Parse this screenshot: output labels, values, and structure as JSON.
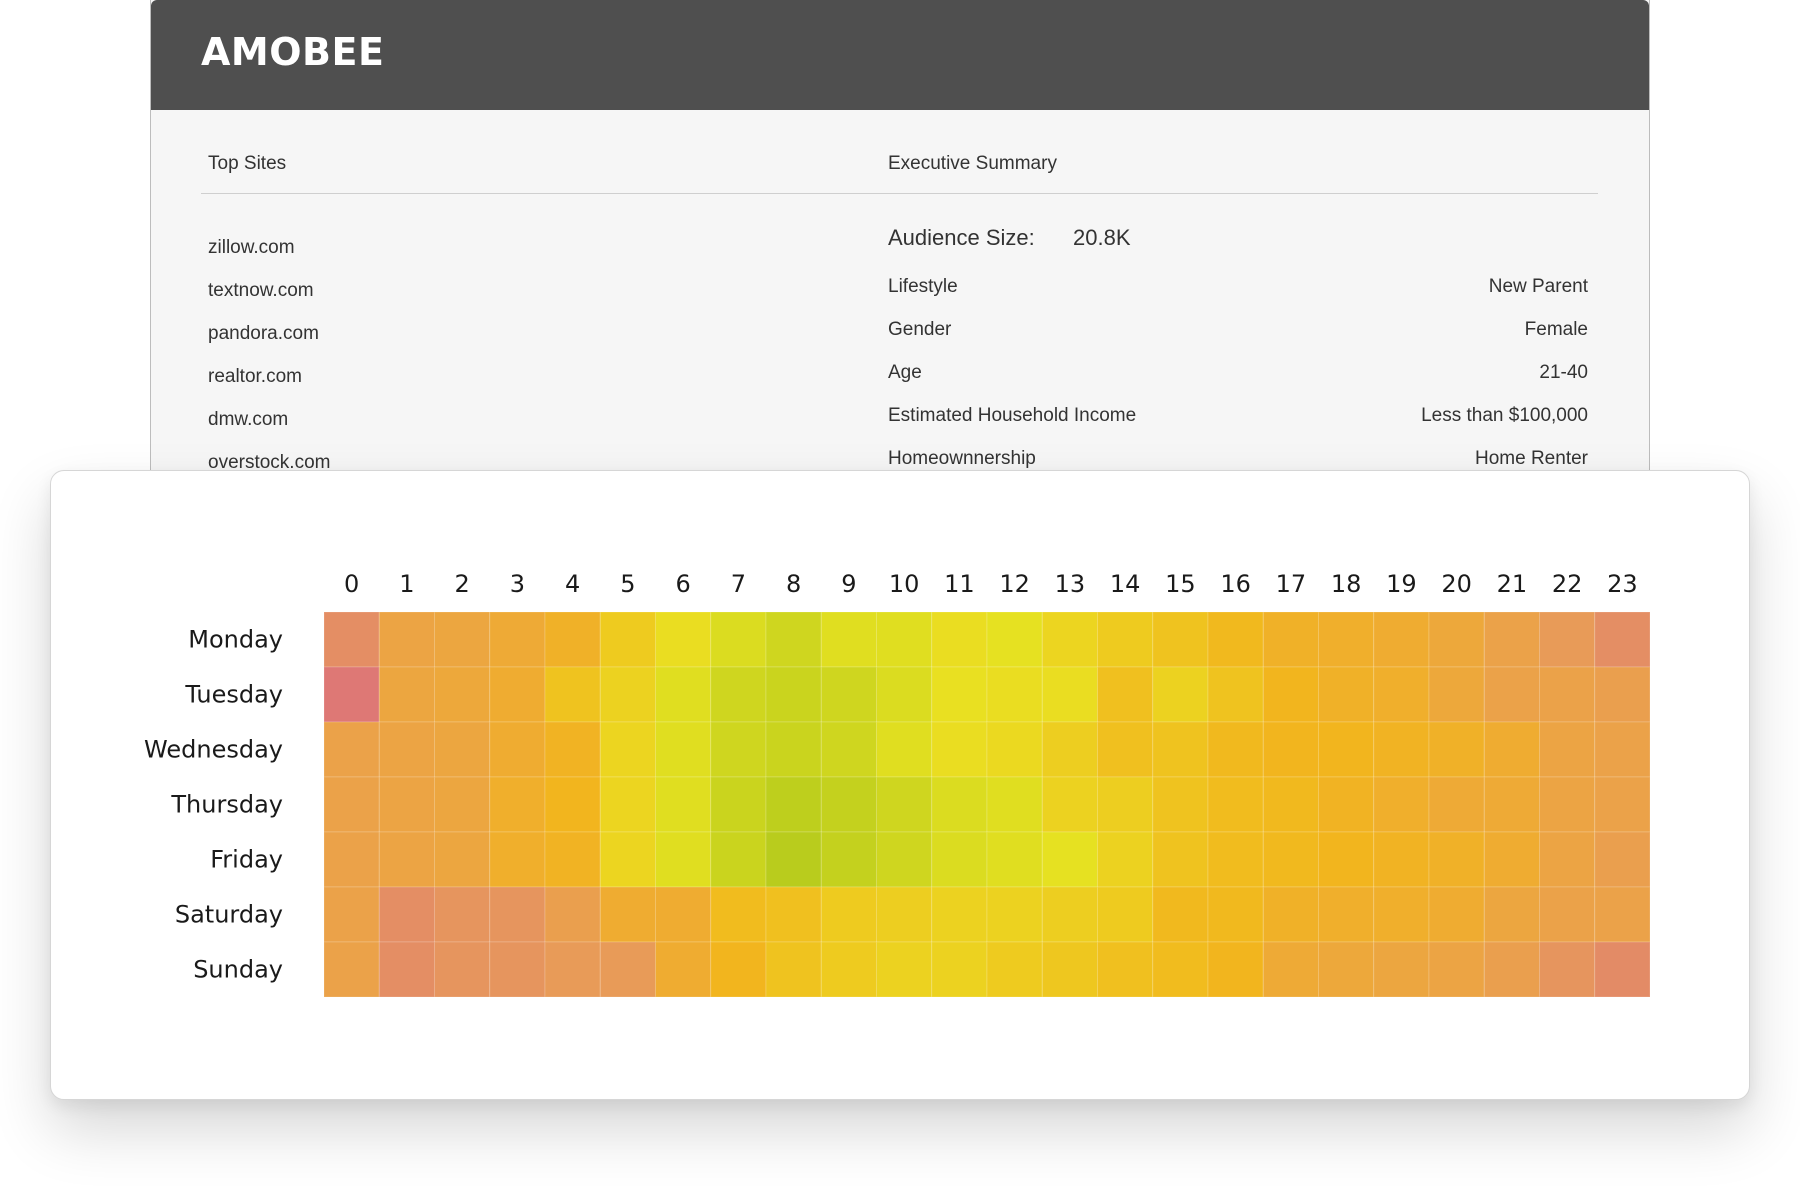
{
  "header": {
    "brand": "AMOBEE"
  },
  "top_sites": {
    "heading": "Top Sites",
    "items": [
      "zillow.com",
      "textnow.com",
      "pandora.com",
      "realtor.com",
      "dmw.com",
      "overstock.com"
    ]
  },
  "executive_summary": {
    "heading": "Executive Summary",
    "audience_size_label": "Audience Size:",
    "audience_size_value": "20.8K",
    "rows": [
      {
        "label": "Lifestyle",
        "value": "New Parent"
      },
      {
        "label": "Gender",
        "value": "Female"
      },
      {
        "label": "Age",
        "value": "21-40"
      },
      {
        "label": "Estimated Household Income",
        "value": "Less than $100,000"
      },
      {
        "label": "Homeownnership",
        "value": "Home Renter"
      }
    ]
  },
  "chart_data": {
    "type": "heatmap",
    "x": [
      "0",
      "1",
      "2",
      "3",
      "4",
      "5",
      "6",
      "7",
      "8",
      "9",
      "10",
      "11",
      "12",
      "13",
      "14",
      "15",
      "16",
      "17",
      "18",
      "19",
      "20",
      "21",
      "22",
      "23"
    ],
    "y": [
      "Monday",
      "Tuesday",
      "Wednesday",
      "Thursday",
      "Friday",
      "Saturday",
      "Sunday"
    ],
    "values": [
      [
        0.18,
        0.34,
        0.36,
        0.4,
        0.46,
        0.62,
        0.72,
        0.8,
        0.84,
        0.78,
        0.78,
        0.72,
        0.76,
        0.68,
        0.62,
        0.58,
        0.52,
        0.46,
        0.44,
        0.42,
        0.38,
        0.32,
        0.26,
        0.18
      ],
      [
        0.05,
        0.36,
        0.38,
        0.42,
        0.58,
        0.66,
        0.78,
        0.84,
        0.86,
        0.84,
        0.8,
        0.74,
        0.72,
        0.72,
        0.56,
        0.66,
        0.58,
        0.5,
        0.46,
        0.44,
        0.38,
        0.32,
        0.32,
        0.3
      ],
      [
        0.32,
        0.34,
        0.36,
        0.42,
        0.48,
        0.68,
        0.78,
        0.84,
        0.86,
        0.84,
        0.78,
        0.72,
        0.7,
        0.64,
        0.56,
        0.58,
        0.52,
        0.5,
        0.5,
        0.48,
        0.46,
        0.42,
        0.34,
        0.32
      ],
      [
        0.32,
        0.34,
        0.36,
        0.44,
        0.5,
        0.68,
        0.78,
        0.86,
        0.9,
        0.88,
        0.84,
        0.8,
        0.78,
        0.66,
        0.64,
        0.58,
        0.54,
        0.52,
        0.48,
        0.44,
        0.4,
        0.4,
        0.34,
        0.32
      ],
      [
        0.32,
        0.34,
        0.36,
        0.44,
        0.48,
        0.68,
        0.78,
        0.86,
        0.92,
        0.88,
        0.84,
        0.8,
        0.78,
        0.76,
        0.66,
        0.58,
        0.54,
        0.52,
        0.5,
        0.48,
        0.46,
        0.42,
        0.34,
        0.3
      ],
      [
        0.32,
        0.18,
        0.22,
        0.22,
        0.3,
        0.42,
        0.42,
        0.54,
        0.56,
        0.62,
        0.64,
        0.66,
        0.66,
        0.64,
        0.62,
        0.52,
        0.52,
        0.46,
        0.44,
        0.44,
        0.42,
        0.36,
        0.32,
        0.32
      ],
      [
        0.32,
        0.18,
        0.22,
        0.22,
        0.26,
        0.26,
        0.42,
        0.5,
        0.58,
        0.62,
        0.66,
        0.66,
        0.62,
        0.6,
        0.56,
        0.54,
        0.5,
        0.4,
        0.38,
        0.36,
        0.34,
        0.3,
        0.22,
        0.16
      ]
    ],
    "color_scale": [
      "#db6f7c",
      "#e89a5a",
      "#f2b51e",
      "#e9e221",
      "#a2c21b"
    ],
    "xlabel": "",
    "ylabel": "",
    "legend": "none"
  }
}
